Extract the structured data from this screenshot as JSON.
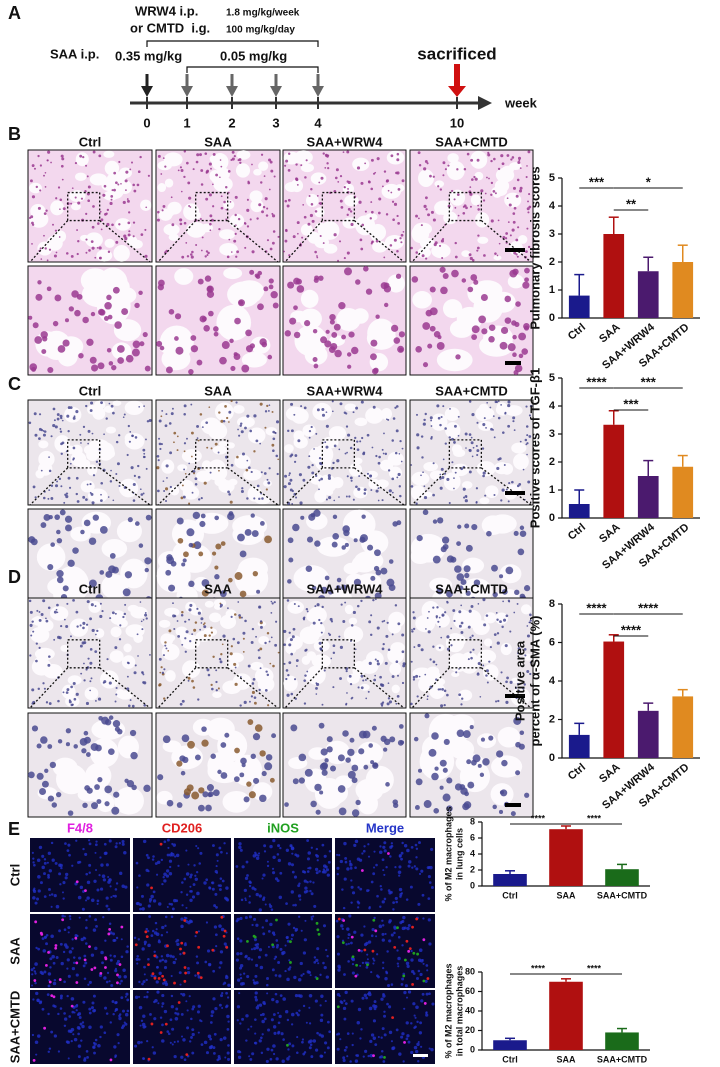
{
  "timeline": {
    "label": "A",
    "treatments": [
      {
        "drug": "WRW4 i.p.",
        "dose": "1.8 mg/kg/week"
      },
      {
        "drug": "or CMTD  i.g.",
        "dose": "100 mg/kg/day"
      }
    ],
    "saa": "SAA i.p.",
    "first_dose": "0.35 mg/kg",
    "later_dose": "0.05 mg/kg",
    "endpoint": "sacrificed",
    "weeks": [
      0,
      1,
      2,
      3,
      4,
      10
    ],
    "unit": "week"
  },
  "histology": [
    {
      "label": "B",
      "columns": [
        "Ctrl",
        "SAA",
        "SAA+WRW4",
        "SAA+CMTD"
      ]
    },
    {
      "label": "C",
      "columns": [
        "Ctrl",
        "SAA",
        "SAA+WRW4",
        "SAA+CMTD"
      ]
    },
    {
      "label": "D",
      "columns": [
        "Ctrl",
        "SAA",
        "SAA+WRW4",
        "SAA+CMTD"
      ]
    }
  ],
  "immunofluorescence": {
    "label": "E",
    "channels": [
      "F4/8",
      "CD206",
      "iNOS",
      "Merge"
    ],
    "channel_colors": [
      "#e020e0",
      "#e02020",
      "#20a020",
      "#2535c8"
    ],
    "rows": [
      "Ctrl",
      "SAA",
      "SAA+CMTD"
    ]
  },
  "chart_data": [
    {
      "type": "bar",
      "ylabel": [
        "Pulmonary fibrosis scores"
      ],
      "categories": [
        "Ctrl",
        "SAA",
        "SAA+WRW4",
        "SAA+CMTD"
      ],
      "values": [
        0.8,
        3.0,
        1.67,
        2.0
      ],
      "errors": [
        0.75,
        0.6,
        0.5,
        0.6
      ],
      "colors": [
        "#1a1a8c",
        "#b01010",
        "#4b1a6e",
        "#e08a20"
      ],
      "ylim": [
        0,
        5
      ],
      "yticks": [
        0,
        1,
        2,
        3,
        4,
        5
      ],
      "significance": [
        {
          "between": [
            "Ctrl",
            "SAA"
          ],
          "label": "***"
        },
        {
          "between": [
            "SAA",
            "SAA+CMTD"
          ],
          "label": "*"
        },
        {
          "between": [
            "SAA",
            "SAA+WRW4"
          ],
          "label": "**"
        }
      ]
    },
    {
      "type": "bar",
      "ylabel": [
        "Positive scores of TGF-β1"
      ],
      "categories": [
        "Ctrl",
        "SAA",
        "SAA+WRW4",
        "SAA+CMTD"
      ],
      "values": [
        0.5,
        3.33,
        1.5,
        1.83
      ],
      "errors": [
        0.5,
        0.5,
        0.55,
        0.4
      ],
      "colors": [
        "#1a1a8c",
        "#b01010",
        "#4b1a6e",
        "#e08a20"
      ],
      "ylim": [
        0,
        5
      ],
      "yticks": [
        0,
        1,
        2,
        3,
        4,
        5
      ],
      "significance": [
        {
          "between": [
            "Ctrl",
            "SAA"
          ],
          "label": "****"
        },
        {
          "between": [
            "SAA",
            "SAA+CMTD"
          ],
          "label": "***"
        },
        {
          "between": [
            "SAA",
            "SAA+WRW4"
          ],
          "label": "***"
        }
      ]
    },
    {
      "type": "bar",
      "ylabel": [
        "Positive area",
        "percent of α-SMA (%)"
      ],
      "categories": [
        "Ctrl",
        "SAA",
        "SAA+WRW4",
        "SAA+CMTD"
      ],
      "values": [
        1.2,
        6.05,
        2.45,
        3.2
      ],
      "errors": [
        0.6,
        0.35,
        0.4,
        0.35
      ],
      "colors": [
        "#1a1a8c",
        "#b01010",
        "#4b1a6e",
        "#e08a20"
      ],
      "ylim": [
        0,
        8
      ],
      "yticks": [
        0,
        2,
        4,
        6,
        8
      ],
      "significance": [
        {
          "between": [
            "Ctrl",
            "SAA"
          ],
          "label": "****"
        },
        {
          "between": [
            "SAA",
            "SAA+CMTD"
          ],
          "label": "****"
        },
        {
          "between": [
            "SAA",
            "SAA+WRW4"
          ],
          "label": "****"
        }
      ]
    },
    {
      "type": "bar",
      "ylabel": [
        "% of M2 macrophages",
        "in lung cells"
      ],
      "categories": [
        "Ctrl",
        "SAA",
        "SAA+CMTD"
      ],
      "values": [
        1.5,
        7.1,
        2.1
      ],
      "errors": [
        0.4,
        0.4,
        0.6
      ],
      "colors": [
        "#1a1a8c",
        "#b01010",
        "#1a6b1a"
      ],
      "ylim": [
        0,
        8
      ],
      "yticks": [
        0,
        2,
        4,
        6,
        8
      ],
      "significance": [
        {
          "between": [
            "Ctrl",
            "SAA"
          ],
          "label": "****"
        },
        {
          "between": [
            "SAA",
            "SAA+CMTD"
          ],
          "label": "****"
        }
      ]
    },
    {
      "type": "bar",
      "ylabel": [
        "% of M2 macrophages",
        "in total macrophages"
      ],
      "categories": [
        "Ctrl",
        "SAA",
        "SAA+CMTD"
      ],
      "values": [
        10,
        70,
        18
      ],
      "errors": [
        2,
        3,
        4
      ],
      "colors": [
        "#1a1a8c",
        "#b01010",
        "#1a6b1a"
      ],
      "ylim": [
        0,
        80
      ],
      "yticks": [
        0,
        20,
        40,
        60,
        80
      ],
      "significance": [
        {
          "between": [
            "Ctrl",
            "SAA"
          ],
          "label": "****"
        },
        {
          "between": [
            "SAA",
            "SAA+CMTD"
          ],
          "label": "****"
        }
      ]
    }
  ]
}
